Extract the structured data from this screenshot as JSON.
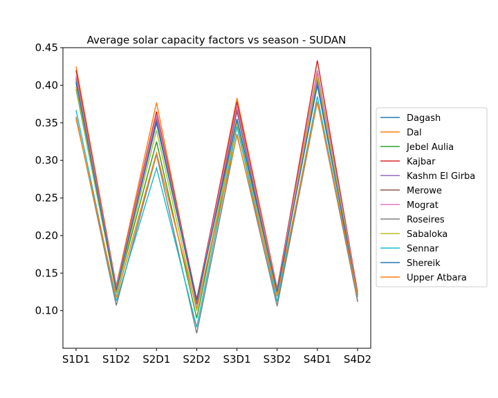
{
  "chart_data": {
    "type": "line",
    "title": "Average solar capacity factors vs season - SUDAN",
    "xlabel": "",
    "ylabel": "",
    "categories": [
      "S1D1",
      "S1D2",
      "S2D1",
      "S2D2",
      "S3D1",
      "S3D2",
      "S4D1",
      "S4D2"
    ],
    "ylim": [
      0.05,
      0.45
    ],
    "yticks": [
      "0.10",
      "0.15",
      "0.20",
      "0.25",
      "0.30",
      "0.35",
      "0.40",
      "0.45"
    ],
    "grid": false,
    "legend_position": "right",
    "series": [
      {
        "name": "Dagash",
        "color": "#1f77b4",
        "values": [
          0.403,
          0.128,
          0.35,
          0.112,
          0.355,
          0.125,
          0.405,
          0.121
        ]
      },
      {
        "name": "Dal",
        "color": "#ff7f0e",
        "values": [
          0.425,
          0.133,
          0.377,
          0.11,
          0.383,
          0.13,
          0.42,
          0.125
        ]
      },
      {
        "name": "Jebel Aulia",
        "color": "#2ca02c",
        "values": [
          0.395,
          0.124,
          0.325,
          0.09,
          0.352,
          0.12,
          0.41,
          0.12
        ]
      },
      {
        "name": "Kajbar",
        "color": "#d62728",
        "values": [
          0.42,
          0.131,
          0.365,
          0.115,
          0.378,
          0.128,
          0.433,
          0.125
        ]
      },
      {
        "name": "Kashm El Girba",
        "color": "#9467bd",
        "values": [
          0.408,
          0.126,
          0.355,
          0.108,
          0.365,
          0.124,
          0.408,
          0.122
        ]
      },
      {
        "name": "Merowe",
        "color": "#8c564b",
        "values": [
          0.41,
          0.128,
          0.358,
          0.11,
          0.368,
          0.126,
          0.415,
          0.112
        ]
      },
      {
        "name": "Mograt",
        "color": "#e377c2",
        "values": [
          0.413,
          0.13,
          0.36,
          0.112,
          0.372,
          0.127,
          0.42,
          0.124
        ]
      },
      {
        "name": "Roseires",
        "color": "#7f7f7f",
        "values": [
          0.358,
          0.107,
          0.308,
          0.07,
          0.335,
          0.106,
          0.378,
          0.113
        ]
      },
      {
        "name": "Sabaloka",
        "color": "#bcbd22",
        "values": [
          0.398,
          0.125,
          0.34,
          0.1,
          0.35,
          0.122,
          0.413,
          0.121
        ]
      },
      {
        "name": "Sennar",
        "color": "#17becf",
        "values": [
          0.367,
          0.113,
          0.29,
          0.078,
          0.345,
          0.112,
          0.385,
          0.118
        ]
      },
      {
        "name": "Shereik",
        "color": "#1f77b4",
        "values": [
          0.405,
          0.127,
          0.352,
          0.113,
          0.355,
          0.125,
          0.4,
          0.121
        ]
      },
      {
        "name": "Upper Atbara",
        "color": "#ff7f0e",
        "values": [
          0.355,
          0.118,
          0.31,
          0.103,
          0.333,
          0.119,
          0.378,
          0.12
        ]
      }
    ]
  }
}
